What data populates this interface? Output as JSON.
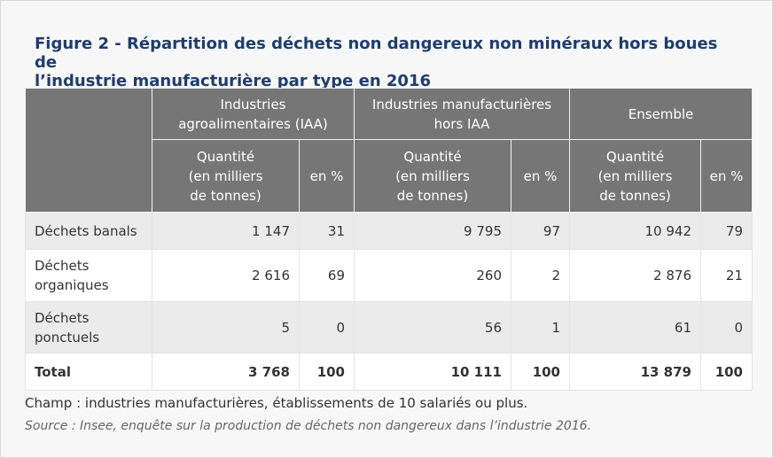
{
  "figure": {
    "title_line1": "Figure 2 - Répartition des déchets non dangereux non minéraux hors boues de",
    "title_line2": "l’industrie manufacturière par type en 2016"
  },
  "table": {
    "groups": [
      "Industries agroalimentaires (IAA)",
      "Industries manufacturières hors IAA",
      "Ensemble"
    ],
    "subheaders": {
      "qty": [
        "Quantité",
        "(en milliers",
        "de tonnes)"
      ],
      "pct": "en %"
    },
    "rows": [
      {
        "label": [
          "Déchets banals"
        ],
        "values": [
          "1 147",
          "31",
          "9 795",
          "97",
          "10 942",
          "79"
        ]
      },
      {
        "label": [
          "Déchets",
          "organiques"
        ],
        "values": [
          "2 616",
          "69",
          "260",
          "2",
          "2 876",
          "21"
        ]
      },
      {
        "label": [
          "Déchets",
          "ponctuels"
        ],
        "values": [
          "5",
          "0",
          "56",
          "1",
          "61",
          "0"
        ]
      },
      {
        "label": [
          "Total"
        ],
        "values": [
          "3 768",
          "100",
          "10 111",
          "100",
          "13 879",
          "100"
        ]
      }
    ]
  },
  "notes": {
    "champ": "Champ : industries manufacturières, établissements de 10 salariés ou plus.",
    "source": "Source : Insee, enquête sur la production de déchets non dangereux dans l’industrie 2016."
  },
  "colors": {
    "title": "#1f3d6d",
    "header_bg": "#767676",
    "row_shaded": "#ebebeb",
    "row_white": "#ffffff"
  }
}
